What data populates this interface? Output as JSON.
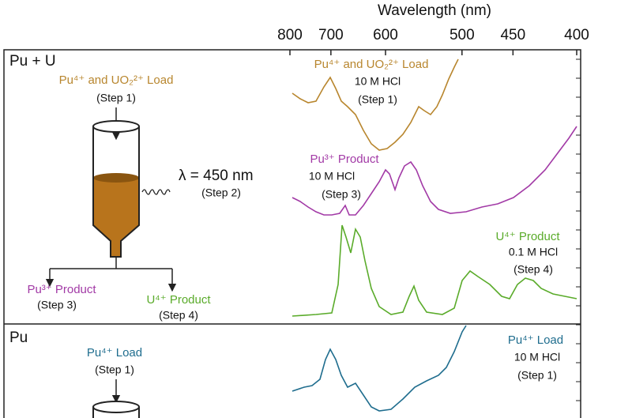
{
  "axis": {
    "title": "Wavelength (nm)",
    "ticks": [
      800,
      700,
      600,
      500,
      450,
      400
    ]
  },
  "panels": [
    {
      "title": "Pu + U",
      "load": {
        "label": "Pu⁴⁺ and UO₂²⁺ Load",
        "step": "(Step 1)"
      },
      "irradiation": {
        "label": "λ = 450 nm",
        "step": "(Step 2)"
      },
      "outputs": [
        {
          "label": "Pu³⁺ Product",
          "step": "(Step 3)"
        },
        {
          "label": "U⁴⁺ Product",
          "step": "(Step 4)"
        }
      ],
      "spectra": [
        {
          "label": "Pu⁴⁺ and UO₂²⁺ Load",
          "solution": "10 M HCl",
          "step": "(Step 1)",
          "color": "#b8862e"
        },
        {
          "label": "Pu³⁺ Product",
          "solution": "10 M HCl",
          "step": "(Step 3)",
          "color": "#a23aa6"
        },
        {
          "label": "U⁴⁺ Product",
          "solution": "0.1 M HCl",
          "step": "(Step 4)",
          "color": "#5aab2a"
        }
      ]
    },
    {
      "title": "Pu",
      "load": {
        "label": "Pu⁴⁺ Load",
        "step": "(Step 1)"
      },
      "spectra": [
        {
          "label": "Pu⁴⁺ Load",
          "solution": "10 M HCl",
          "step": "(Step 1)",
          "color": "#1f6d8e"
        }
      ]
    }
  ]
}
